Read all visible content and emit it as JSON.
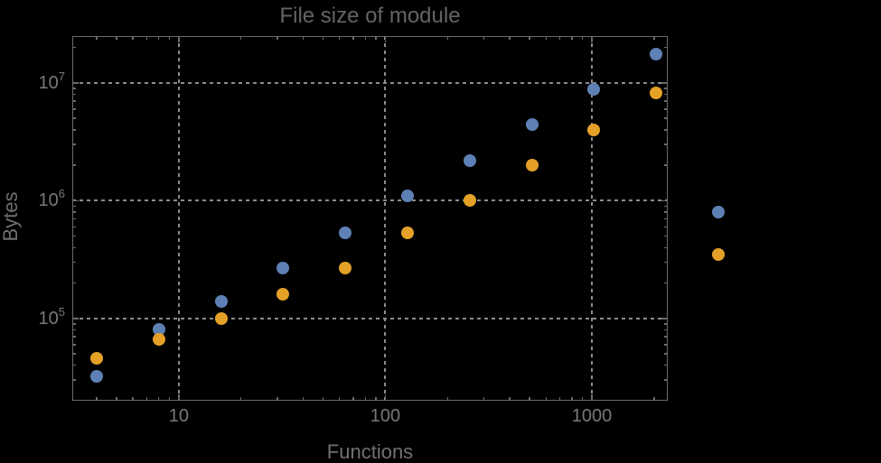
{
  "chart_data": {
    "type": "scatter",
    "title": "File size of module",
    "xlabel": "Functions",
    "ylabel": "Bytes",
    "xscale": "log",
    "yscale": "log",
    "xlim": [
      3.05,
      2330
    ],
    "ylim": [
      20000,
      25000000
    ],
    "grid": "dotted gridlines at decade ticks",
    "legend": "none",
    "x": [
      4,
      8,
      16,
      32,
      64,
      128,
      256,
      512,
      1024,
      2048,
      4096
    ],
    "series": [
      {
        "name": "series-blue",
        "color": "#5E81B5",
        "values": [
          32000,
          80000,
          140000,
          270000,
          530000,
          1100000,
          2200000,
          4400000,
          8800000,
          17500000,
          800000
        ]
      },
      {
        "name": "series-orange",
        "color": "#E5A028",
        "values": [
          46000,
          66000,
          100000,
          160000,
          270000,
          530000,
          1000000,
          2000000,
          4000000,
          8200000,
          350000
        ]
      }
    ],
    "x_ticks": [
      {
        "value": 10,
        "label": "10"
      },
      {
        "value": 100,
        "label": "100"
      },
      {
        "value": 1000,
        "label": "1000"
      }
    ],
    "y_ticks": [
      {
        "value": 100000,
        "mantissa": "10",
        "exponent": "5"
      },
      {
        "value": 1000000,
        "mantissa": "10",
        "exponent": "6"
      },
      {
        "value": 10000000,
        "mantissa": "10",
        "exponent": "7"
      }
    ]
  },
  "colors": {
    "background": "#000000",
    "frame": "#6a6a6a",
    "grid": "#8c8c8c",
    "title_text": "#646464",
    "label_text": "#707070",
    "tick_text": "#787878",
    "series_blue": "#5E81B5",
    "series_orange": "#E5A028"
  }
}
